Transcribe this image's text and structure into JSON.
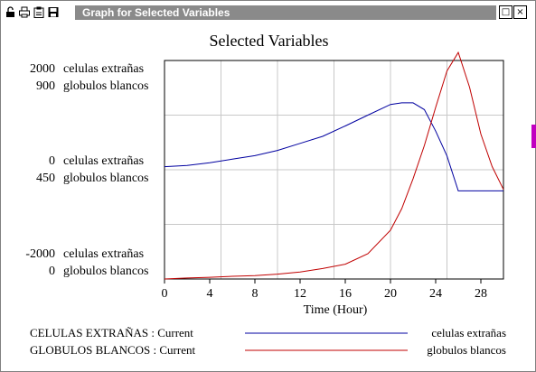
{
  "window": {
    "title": "Graph for Selected Variables",
    "toolbar_icons": [
      "lock-icon",
      "print-icon",
      "clipboard-icon",
      "save-icon"
    ],
    "buttons": {
      "restore": "□",
      "close": "×"
    }
  },
  "chart_data": {
    "type": "line",
    "title": "Selected Variables",
    "xlabel": "Time (Hour)",
    "xlim": [
      0,
      30
    ],
    "x_ticks": [
      "0",
      "4",
      "8",
      "12",
      "16",
      "20",
      "24",
      "28"
    ],
    "grid": true,
    "axes": [
      {
        "name": "celulas extrañas",
        "ylim": [
          -2000,
          2000
        ],
        "tick_labels": [
          "2000",
          "0",
          "-2000"
        ]
      },
      {
        "name": "globulos blancos",
        "ylim": [
          0,
          900
        ],
        "tick_labels": [
          "900",
          "450",
          "0"
        ]
      }
    ],
    "series": [
      {
        "name": "CELULAS EXTRAÑAS : Current",
        "axis_label": "celulas extrañas",
        "color": "#0000a0",
        "x": [
          0,
          2,
          4,
          6,
          8,
          10,
          12,
          14,
          16,
          18,
          20,
          21,
          22,
          23,
          24,
          25,
          26,
          27,
          28,
          29,
          30
        ],
        "y": [
          56,
          80,
          129,
          193,
          258,
          354,
          483,
          611,
          801,
          1000,
          1195,
          1225,
          1225,
          1100,
          708,
          253,
          -387,
          -387,
          -387,
          -387,
          -387
        ]
      },
      {
        "name": "GLOBULOS BLANCOS : Current",
        "axis_label": "globulos blancos",
        "color": "#c00000",
        "x": [
          0,
          2,
          4,
          6,
          8,
          10,
          12,
          14,
          16,
          18,
          20,
          21,
          22,
          23,
          24,
          25,
          26,
          27,
          28,
          29,
          30
        ],
        "y": [
          0,
          4,
          7,
          11,
          14,
          20,
          29,
          43,
          61,
          104,
          201,
          290,
          413,
          550,
          707,
          857,
          933,
          790,
          597,
          463,
          369
        ]
      }
    ],
    "legend": {
      "placement": "bottom",
      "entries": [
        {
          "label": "CELULAS EXTRAÑAS : Current",
          "axis_label": "celulas extrañas",
          "color": "#0000a0"
        },
        {
          "label": "GLOBULOS BLANCOS : Current",
          "axis_label": "globulos blancos",
          "color": "#c00000"
        }
      ]
    }
  }
}
